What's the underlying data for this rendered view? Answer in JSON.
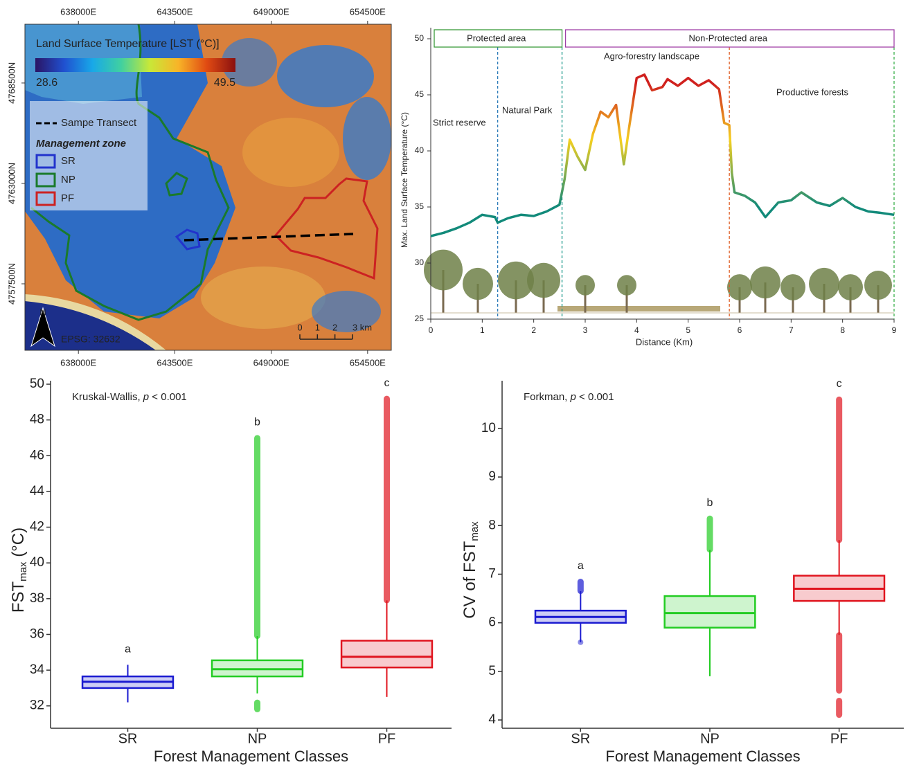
{
  "chart_data": [
    {
      "type": "map",
      "title": "Land Surface Temperature [LST (°C)]",
      "colorbar": {
        "min": 28.6,
        "max": 49.5,
        "colors": [
          "#2a1464",
          "#2050d0",
          "#18a8e8",
          "#40d0a0",
          "#c8e838",
          "#f8b428",
          "#e04a12",
          "#8a1010"
        ]
      },
      "xlim": [
        634950,
        655850
      ],
      "xticks": [
        {
          "value": 638000,
          "label": "638000E"
        },
        {
          "value": 643500,
          "label": "643500E"
        },
        {
          "value": 649000,
          "label": "649000E"
        },
        {
          "value": 654500,
          "label": "654500E"
        }
      ],
      "ylim": [
        4753860,
        4771720
      ],
      "yticks": [
        {
          "value": 4757500,
          "label": "4757500N"
        },
        {
          "value": 4763000,
          "label": "4763000N"
        },
        {
          "value": 4768500,
          "label": "4768500N"
        }
      ],
      "transect": "Sampe Transect",
      "legend_title": "Management zone",
      "zones": [
        {
          "name": "SR",
          "color": "#2233cc"
        },
        {
          "name": "NP",
          "color": "#1a7a2a"
        },
        {
          "name": "PF",
          "color": "#cc2222"
        }
      ],
      "scale_ticks": [
        0,
        1,
        2,
        {
          "value": 3,
          "label": "3 km"
        }
      ],
      "crs": "EPSG: 32632",
      "north": "N"
    },
    {
      "type": "line",
      "regions": [
        {
          "label": "Protected area",
          "from": 0,
          "to": 2.55,
          "color": "#3a9a3a"
        },
        {
          "label": "Non-Protected area",
          "from": 2.55,
          "to": 9,
          "color": "#a040a8"
        }
      ],
      "vlines": [
        {
          "x": 1.3,
          "color": "#2a7ab8"
        },
        {
          "x": 2.55,
          "color": "#1a9a8a"
        },
        {
          "x": 5.8,
          "color": "#e05a20"
        },
        {
          "x": 9,
          "color": "#3ab04a"
        }
      ],
      "annotations": [
        {
          "text": "Strict reserve",
          "color": "#2a7ab8"
        },
        {
          "text": "Natural Park",
          "color": "#1a9a8a"
        },
        {
          "text": "Agro-forestry landscape",
          "color": "#e8641a"
        },
        {
          "text": "Productive forests",
          "color": "#3ab04a"
        }
      ],
      "x": [
        0,
        0.25,
        0.5,
        0.75,
        1.0,
        1.25,
        1.3,
        1.5,
        1.75,
        2.0,
        2.25,
        2.5,
        2.6,
        2.7,
        2.85,
        3.0,
        3.15,
        3.3,
        3.45,
        3.6,
        3.75,
        3.85,
        4.0,
        4.15,
        4.3,
        4.5,
        4.6,
        4.8,
        5.0,
        5.2,
        5.4,
        5.6,
        5.7,
        5.8,
        5.85,
        5.9,
        6.1,
        6.3,
        6.5,
        6.75,
        7.0,
        7.2,
        7.5,
        7.75,
        8.0,
        8.25,
        8.5,
        8.7,
        9.0
      ],
      "series": [
        {
          "values": [
            32.4,
            32.7,
            33.1,
            33.6,
            34.3,
            34.1,
            33.6,
            34.0,
            34.3,
            34.2,
            34.6,
            35.2,
            37.5,
            41.0,
            39.5,
            38.3,
            41.5,
            43.5,
            43.0,
            44.1,
            38.8,
            42.0,
            46.5,
            46.8,
            45.4,
            45.7,
            46.4,
            45.8,
            46.5,
            45.8,
            46.3,
            45.5,
            42.5,
            42.3,
            38.0,
            36.3,
            36.0,
            35.4,
            34.1,
            35.4,
            35.6,
            36.3,
            35.4,
            35.1,
            35.8,
            35.0,
            34.6,
            34.5,
            34.3
          ]
        }
      ],
      "color_scale": {
        "values": [
          35,
          41,
          46
        ],
        "colors": [
          "#128a7a",
          "#f5d020",
          "#d0201e"
        ]
      },
      "xlim": [
        0,
        9
      ],
      "xticks": [
        0,
        1,
        2,
        3,
        4,
        5,
        6,
        7,
        8,
        9
      ],
      "ylim": [
        25,
        50
      ],
      "yticks": [
        25,
        30,
        35,
        40,
        45,
        50
      ],
      "ylabel": "Max. Land Surface Temperature (°C)",
      "xlabel": "Distance (Km)"
    },
    {
      "type": "box",
      "annotation": [
        "Kruskal-Wallis, ",
        "p",
        " < 0.001"
      ],
      "ylabel": {
        "main": "FST",
        "sub": "max",
        "rest": " (°C)"
      },
      "xlabel": "Forest Management Classes",
      "categories": [
        "SR",
        "NP",
        "PF"
      ],
      "boxes": [
        {
          "color": "#1a1ad0",
          "whislo": 32.2,
          "q1": 33.0,
          "med": 33.35,
          "q3": 33.65,
          "whishi": 34.3,
          "outliers": [],
          "letter": "a"
        },
        {
          "color": "#22cc22",
          "whislo": 32.7,
          "q1": 33.65,
          "med": 34.05,
          "q3": 34.55,
          "whishi": 35.9,
          "outliers": [
            [
              31.8,
              32.2
            ],
            [
              35.9,
              47.0
            ]
          ],
          "letter": "b"
        },
        {
          "color": "#e0141e",
          "whislo": 32.5,
          "q1": 34.15,
          "med": 34.75,
          "q3": 35.65,
          "whishi": 37.9,
          "outliers": [
            [
              37.9,
              49.2
            ]
          ],
          "letter": "c"
        }
      ],
      "ylim": [
        30.75,
        50
      ],
      "yticks": [
        32,
        34,
        36,
        38,
        40,
        42,
        44,
        46,
        48,
        50
      ]
    },
    {
      "type": "box",
      "annotation": [
        "Forkman, ",
        "p",
        " < 0.001"
      ],
      "ylabel": {
        "main": "CV of FST",
        "sub": "max",
        "rest": ""
      },
      "xlabel": "Forest Management Classes",
      "categories": [
        "SR",
        "NP",
        "PF"
      ],
      "boxes": [
        {
          "color": "#1a1ad0",
          "whislo": 5.6,
          "q1": 6.0,
          "med": 6.12,
          "q3": 6.25,
          "whishi": 6.65,
          "outliers": [
            [
              6.65,
              6.85
            ],
            [
              5.6,
              5.6
            ]
          ],
          "letter": "a"
        },
        {
          "color": "#22cc22",
          "whislo": 4.9,
          "q1": 5.9,
          "med": 6.2,
          "q3": 6.55,
          "whishi": 7.5,
          "outliers": [
            [
              7.5,
              8.15
            ]
          ],
          "letter": "b"
        },
        {
          "color": "#e0141e",
          "whislo": 5.75,
          "q1": 6.45,
          "med": 6.7,
          "q3": 6.97,
          "whishi": 7.7,
          "outliers": [
            [
              7.7,
              10.6
            ],
            [
              4.6,
              5.75
            ],
            [
              4.1,
              4.4
            ]
          ],
          "letter": "c"
        }
      ],
      "ylim": [
        3.83,
        10.91
      ],
      "yticks": [
        4,
        5,
        6,
        7,
        8,
        9,
        10
      ]
    }
  ]
}
